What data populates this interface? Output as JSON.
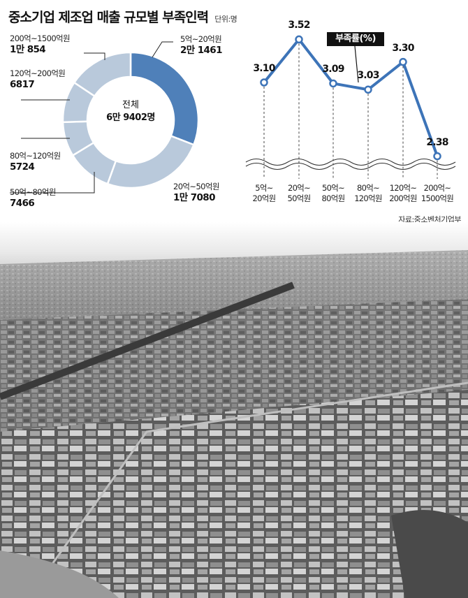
{
  "title": "중소기업 제조업 매출 규모별 부족인력",
  "unit": "단위:명",
  "source": "자료:중소벤처기업부",
  "colors": {
    "highlight": "#4f80b9",
    "slice": "#b9c9db",
    "line": "#3d74b8",
    "text": "#111111"
  },
  "chart_data": [
    {
      "type": "pie",
      "title": "중소기업 제조업 매출 규모별 부족인력",
      "unit": "단위:명",
      "center_label": {
        "line1": "전체",
        "line2": "6만 9402명"
      },
      "categories": [
        "5억~20억원",
        "20억~50억원",
        "50억~80억원",
        "80억~120억원",
        "120억~200억원",
        "200억~1500억원"
      ],
      "values": [
        21461,
        17080,
        7466,
        5724,
        6817,
        10854
      ],
      "value_labels": [
        "2만 1461",
        "1만 7080",
        "7466",
        "5724",
        "6817",
        "1만 854"
      ],
      "total": 69402,
      "highlight_index": 0
    },
    {
      "type": "line",
      "series_name": "부족률(%)",
      "categories": [
        [
          "5억~",
          "20억원"
        ],
        [
          "20억~",
          "50억원"
        ],
        [
          "50억~",
          "80억원"
        ],
        [
          "80억~",
          "120억원"
        ],
        [
          "120억~",
          "200억원"
        ],
        [
          "200억~",
          "1500억원"
        ]
      ],
      "values": [
        3.1,
        3.52,
        3.09,
        3.03,
        3.3,
        2.38
      ],
      "value_labels": [
        "3.10",
        "3.52",
        "3.09",
        "3.03",
        "3.30",
        "2.38"
      ],
      "ylim": [
        2.2,
        3.7
      ],
      "axis_break": true
    }
  ],
  "photo": {
    "description_name": "industrial-complex-aerial-photo"
  }
}
